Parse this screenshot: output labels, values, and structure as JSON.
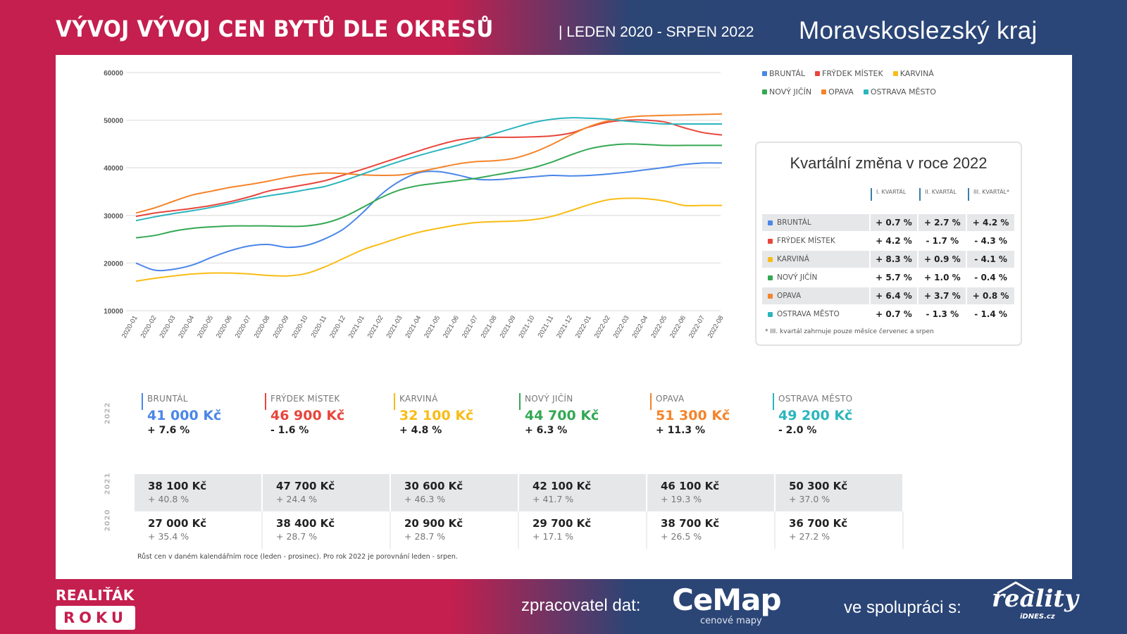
{
  "header": {
    "title": "VÝVOJ VÝVOJ CEN BYTŮ DLE OKRESŮ",
    "period": "| LEDEN 2020 - SRPEN 2022",
    "region": "Moravskoslezský  kraj"
  },
  "legend": [
    {
      "name": "BRUNTÁL",
      "color": "#4a86e8"
    },
    {
      "name": "FRÝDEK MÍSTEK",
      "color": "#e8453c"
    },
    {
      "name": "KARVINÁ",
      "color": "#f9bc15"
    },
    {
      "name": "NOVÝ JIČÍN",
      "color": "#34a853"
    },
    {
      "name": "OPAVA",
      "color": "#f4842b"
    },
    {
      "name": "OSTRAVA MĚSTO",
      "color": "#2bb5bd"
    }
  ],
  "chart_data": {
    "type": "line",
    "title": "",
    "xlabel": "",
    "ylabel": "",
    "ylim": [
      10000,
      60000
    ],
    "yticks": [
      10000,
      20000,
      30000,
      40000,
      50000,
      60000
    ],
    "grid": true,
    "legend_position": "top-right",
    "x": [
      "2020-01",
      "2020-02",
      "2020-03",
      "2020-04",
      "2020-05",
      "2020-06",
      "2020-07",
      "2020-08",
      "2020-09",
      "2020-10",
      "2020-11",
      "2020-12",
      "2021-01",
      "2021-02",
      "2021-03",
      "2021-04",
      "2021-05",
      "2021-06",
      "2021-07",
      "2021-08",
      "2021-09",
      "2021-10",
      "2021-11",
      "2021-12",
      "2022-01",
      "2022-02",
      "2022-03",
      "2022-04",
      "2022-05",
      "2022-06",
      "2022-07",
      "2022-08"
    ],
    "series": [
      {
        "name": "BRUNTÁL",
        "color": "#4a86e8",
        "values": [
          20000,
          18500,
          18700,
          19600,
          21200,
          22600,
          23600,
          23900,
          23300,
          23700,
          25100,
          27200,
          30600,
          34500,
          37300,
          39000,
          39200,
          38500,
          37600,
          37500,
          37800,
          38100,
          38400,
          38300,
          38400,
          38700,
          39100,
          39600,
          40100,
          40700,
          41000,
          41000
        ]
      },
      {
        "name": "FRÝDEK MÍSTEK",
        "color": "#e8453c",
        "values": [
          29800,
          30500,
          31000,
          31500,
          32100,
          32900,
          33900,
          35100,
          35800,
          36500,
          37300,
          38500,
          39700,
          41000,
          42300,
          43600,
          44800,
          45800,
          46300,
          46400,
          46400,
          46500,
          46700,
          47300,
          48600,
          49600,
          50000,
          50000,
          49600,
          48400,
          47400,
          46900
        ]
      },
      {
        "name": "KARVINÁ",
        "color": "#f9bc15",
        "values": [
          16200,
          16800,
          17300,
          17700,
          17900,
          17900,
          17700,
          17400,
          17300,
          17800,
          19200,
          21000,
          22800,
          24100,
          25400,
          26500,
          27300,
          28000,
          28500,
          28700,
          28800,
          29100,
          29800,
          31000,
          32300,
          33300,
          33600,
          33500,
          33000,
          32100,
          32100,
          32100
        ]
      },
      {
        "name": "NOVÝ JIČÍN",
        "color": "#34a853",
        "values": [
          25300,
          25800,
          26700,
          27300,
          27600,
          27800,
          27800,
          27800,
          27700,
          27800,
          28400,
          29700,
          31700,
          33800,
          35400,
          36300,
          36800,
          37300,
          37800,
          38500,
          39200,
          40000,
          41200,
          42700,
          44000,
          44700,
          45000,
          44900,
          44700,
          44700,
          44700,
          44700
        ]
      },
      {
        "name": "OPAVA",
        "color": "#f4842b",
        "values": [
          30500,
          31600,
          33000,
          34300,
          35100,
          35900,
          36500,
          37200,
          38000,
          38600,
          38900,
          38800,
          38500,
          38400,
          38500,
          39200,
          40000,
          40800,
          41300,
          41500,
          42000,
          43200,
          44900,
          46900,
          48700,
          49900,
          50600,
          50900,
          51000,
          51100,
          51200,
          51300
        ]
      },
      {
        "name": "OSTRAVA MĚSTO",
        "color": "#2bb5bd",
        "values": [
          28900,
          29700,
          30400,
          31000,
          31700,
          32500,
          33400,
          34100,
          34700,
          35400,
          36100,
          37300,
          38700,
          40100,
          41400,
          42600,
          43700,
          44700,
          45900,
          47200,
          48400,
          49500,
          50200,
          50500,
          50400,
          50200,
          49800,
          49500,
          49200,
          49200,
          49200,
          49200
        ]
      }
    ]
  },
  "quarterly": {
    "title": "Kvartální změna v roce 2022",
    "headers": [
      "I. KVARTÁL",
      "II. KVARTÁL",
      "III. KVARTÁL*"
    ],
    "rows": [
      {
        "name": "BRUNTÁL",
        "color": "#4a86e8",
        "values": [
          "+ 0.7 %",
          "+ 2.7 %",
          "+ 4.2 %"
        ]
      },
      {
        "name": "FRÝDEK MÍSTEK",
        "color": "#e8453c",
        "values": [
          "+ 4.2 %",
          "- 1.7 %",
          "- 4.3 %"
        ]
      },
      {
        "name": "KARVINÁ",
        "color": "#f9bc15",
        "values": [
          "+ 8.3 %",
          "+ 0.9 %",
          "- 4.1 %"
        ]
      },
      {
        "name": "NOVÝ JIČÍN",
        "color": "#34a853",
        "values": [
          "+ 5.7 %",
          "+ 1.0 %",
          "- 0.4 %"
        ]
      },
      {
        "name": "OPAVA",
        "color": "#f4842b",
        "values": [
          "+ 6.4 %",
          "+ 3.7 %",
          "+ 0.8 %"
        ]
      },
      {
        "name": "OSTRAVA MĚSTO",
        "color": "#2bb5bd",
        "values": [
          "+ 0.7 %",
          "- 1.3 %",
          "- 1.4 %"
        ]
      }
    ],
    "note": "* III. kvartál zahrnuje pouze měsíce červenec a srpen"
  },
  "summary": {
    "year_2022": "2022",
    "year_2021": "2021",
    "year_2020": "2020",
    "districts": [
      {
        "name": "BRUNTÁL",
        "color": "#4a86e8",
        "price_2022": "41 000 Kč",
        "change_2022": "+ 7.6 %",
        "price_2021": "38 100 Kč",
        "change_2021": "+ 40.8 %",
        "price_2020": "27 000 Kč",
        "change_2020": "+ 35.4 %"
      },
      {
        "name": "FRÝDEK MÍSTEK",
        "color": "#e8453c",
        "price_2022": "46 900 Kč",
        "change_2022": "- 1.6 %",
        "price_2021": "47 700 Kč",
        "change_2021": "+ 24.4 %",
        "price_2020": "38 400 Kč",
        "change_2020": "+ 28.7 %"
      },
      {
        "name": "KARVINÁ",
        "color": "#f9bc15",
        "price_2022": "32 100 Kč",
        "change_2022": "+ 4.8 %",
        "price_2021": "30 600 Kč",
        "change_2021": "+ 46.3 %",
        "price_2020": "20 900 Kč",
        "change_2020": "+ 28.7 %"
      },
      {
        "name": "NOVÝ JIČÍN",
        "color": "#34a853",
        "price_2022": "44 700 Kč",
        "change_2022": "+ 6.3 %",
        "price_2021": "42 100 Kč",
        "change_2021": "+ 41.7 %",
        "price_2020": "29 700 Kč",
        "change_2020": "+ 17.1 %"
      },
      {
        "name": "OPAVA",
        "color": "#f4842b",
        "price_2022": "51 300 Kč",
        "change_2022": "+ 11.3 %",
        "price_2021": "46 100 Kč",
        "change_2021": "+ 19.3 %",
        "price_2020": "38 700 Kč",
        "change_2020": "+ 26.5 %"
      },
      {
        "name": "OSTRAVA MĚSTO",
        "color": "#2bb5bd",
        "price_2022": "49 200 Kč",
        "change_2022": "- 2.0 %",
        "price_2021": "50 300 Kč",
        "change_2021": "+ 37.0 %",
        "price_2020": "36 700 Kč",
        "change_2020": "+ 27.2 %"
      }
    ],
    "footnote": "Růst cen v daném kalendářním roce (leden - prosinec). Pro rok 2022 je porovnání leden - srpen."
  },
  "footer": {
    "brand_top": "REALIŤÁK",
    "brand_bottom": "ROKU",
    "processor_label": "zpracovatel dat:",
    "processor_logo": "CeMap",
    "processor_logo_sub": "cenové mapy",
    "partner_label": "ve spolupráci s:",
    "partner_logo": "reality",
    "partner_logo_sub": "iDNES.cz"
  }
}
